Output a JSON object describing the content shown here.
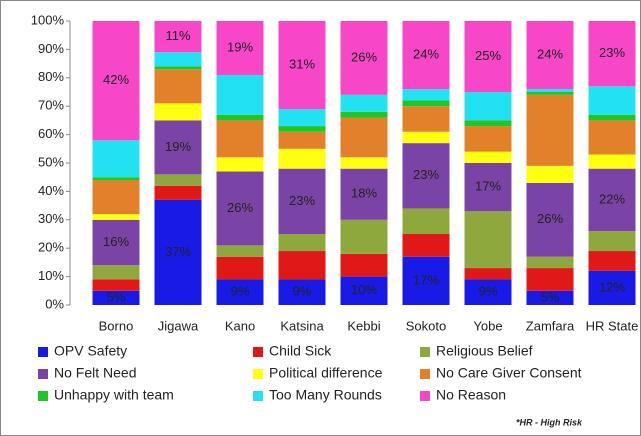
{
  "chart_data": {
    "type": "stacked_bar",
    "categories": [
      "Borno",
      "Jigawa",
      "Kano",
      "Katsina",
      "Kebbi",
      "Sokoto",
      "Yobe",
      "Zamfara",
      "HR State"
    ],
    "series": [
      {
        "name": "OPV Safety",
        "color": "#1a1ae6",
        "values": [
          5,
          37,
          9,
          9,
          10,
          17,
          9,
          5,
          12
        ],
        "value_labels": [
          "5%",
          "37%",
          "9%",
          "9%",
          "10%",
          "17%",
          "9%",
          "5%",
          "12%"
        ]
      },
      {
        "name": "Child Sick",
        "color": "#e01818",
        "values": [
          4,
          5,
          8,
          10,
          8,
          8,
          4,
          8,
          7
        ]
      },
      {
        "name": "Religious Belief",
        "color": "#8fa83e",
        "values": [
          5,
          4,
          4,
          6,
          12,
          9,
          20,
          4,
          7
        ]
      },
      {
        "name": "No Felt Need",
        "color": "#7a44a6",
        "values": [
          16,
          19,
          26,
          23,
          18,
          23,
          17,
          26,
          22
        ],
        "value_labels": [
          "16%",
          "19%",
          "26%",
          "23%",
          "18%",
          "23%",
          "17%",
          "26%",
          "22%"
        ]
      },
      {
        "name": "Political difference",
        "color": "#ffff10",
        "values": [
          2,
          6,
          5,
          7,
          4,
          4,
          4,
          6,
          5
        ]
      },
      {
        "name": "No Care Giver Consent",
        "color": "#e3802a",
        "values": [
          12,
          12,
          13,
          6,
          14,
          9,
          9,
          25,
          12
        ]
      },
      {
        "name": "Unhappy with team",
        "color": "#22c622",
        "values": [
          1,
          1,
          2,
          2,
          2,
          2,
          2,
          1,
          2
        ]
      },
      {
        "name": "Too Many Rounds",
        "color": "#22e2f2",
        "values": [
          13,
          5,
          14,
          6,
          6,
          4,
          10,
          1,
          10
        ]
      },
      {
        "name": "No Reason",
        "color": "#f746c8",
        "values": [
          42,
          11,
          19,
          31,
          26,
          24,
          25,
          24,
          23
        ],
        "value_labels": [
          "42%",
          "11%",
          "19%",
          "31%",
          "26%",
          "24%",
          "25%",
          "24%",
          "23%"
        ]
      }
    ],
    "ylim": [
      0,
      100
    ],
    "yticks": [
      {
        "value": 0,
        "label": "0%"
      },
      {
        "value": 10,
        "label": "10%"
      },
      {
        "value": 20,
        "label": "20%"
      },
      {
        "value": 30,
        "label": "30%"
      },
      {
        "value": 40,
        "label": "40%"
      },
      {
        "value": 50,
        "label": "50%"
      },
      {
        "value": 60,
        "label": "60%"
      },
      {
        "value": 70,
        "label": "70%"
      },
      {
        "value": 80,
        "label": "80%"
      },
      {
        "value": 90,
        "label": "90%"
      },
      {
        "value": 100,
        "label": "100%"
      }
    ],
    "annotation": "*HR - High Risk"
  }
}
